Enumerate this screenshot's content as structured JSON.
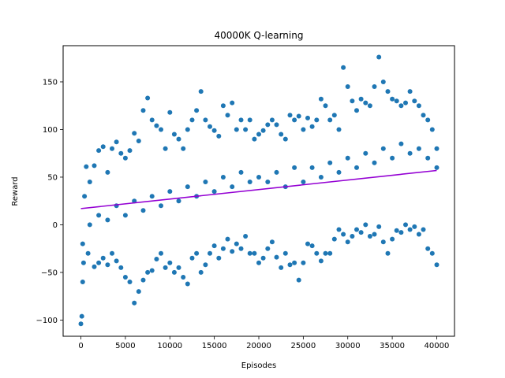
{
  "chart_data": {
    "type": "scatter",
    "title": "40000K Q-learning",
    "xlabel": "Episodes",
    "ylabel": "Reward",
    "xlim": [
      -2000,
      42000
    ],
    "ylim": [
      -117,
      188
    ],
    "xticks": [
      0,
      5000,
      10000,
      15000,
      20000,
      25000,
      30000,
      35000,
      40000
    ],
    "xtick_labels": [
      "0",
      "5000",
      "10000",
      "15000",
      "20000",
      "25000",
      "30000",
      "35000",
      "40000"
    ],
    "yticks": [
      -100,
      -50,
      0,
      50,
      100,
      150
    ],
    "ytick_labels": [
      "−100",
      "−50",
      "0",
      "50",
      "100",
      "150"
    ],
    "grid": false,
    "series": [
      {
        "kind": "scatter",
        "color": "#1f77b4",
        "points": [
          [
            0,
            -104
          ],
          [
            100,
            -96
          ],
          [
            200,
            -60
          ],
          [
            300,
            -40
          ],
          [
            400,
            30
          ],
          [
            600,
            61
          ],
          [
            1000,
            45
          ],
          [
            1500,
            62
          ],
          [
            2000,
            78
          ],
          [
            2500,
            82
          ],
          [
            3000,
            55
          ],
          [
            3500,
            80
          ],
          [
            4000,
            87
          ],
          [
            4500,
            75
          ],
          [
            5000,
            70
          ],
          [
            5500,
            78
          ],
          [
            6000,
            96
          ],
          [
            6500,
            88
          ],
          [
            7000,
            120
          ],
          [
            7500,
            133
          ],
          [
            8000,
            110
          ],
          [
            8500,
            104
          ],
          [
            9000,
            100
          ],
          [
            9500,
            80
          ],
          [
            10000,
            118
          ],
          [
            10500,
            95
          ],
          [
            11000,
            90
          ],
          [
            11500,
            80
          ],
          [
            12000,
            100
          ],
          [
            12500,
            110
          ],
          [
            13000,
            120
          ],
          [
            13500,
            140
          ],
          [
            14000,
            110
          ],
          [
            14500,
            103
          ],
          [
            15000,
            99
          ],
          [
            15500,
            93
          ],
          [
            16000,
            125
          ],
          [
            16500,
            115
          ],
          [
            17000,
            128
          ],
          [
            17500,
            100
          ],
          [
            18000,
            110
          ],
          [
            18500,
            100
          ],
          [
            19000,
            110
          ],
          [
            19500,
            90
          ],
          [
            20000,
            95
          ],
          [
            20500,
            99
          ],
          [
            21000,
            105
          ],
          [
            21500,
            110
          ],
          [
            22000,
            105
          ],
          [
            22500,
            95
          ],
          [
            23000,
            90
          ],
          [
            23500,
            115
          ],
          [
            24000,
            110
          ],
          [
            24500,
            114
          ],
          [
            25000,
            100
          ],
          [
            25500,
            112
          ],
          [
            26000,
            103
          ],
          [
            26500,
            110
          ],
          [
            27000,
            132
          ],
          [
            27500,
            125
          ],
          [
            28000,
            110
          ],
          [
            28500,
            115
          ],
          [
            29000,
            100
          ],
          [
            29500,
            165
          ],
          [
            30000,
            145
          ],
          [
            30500,
            130
          ],
          [
            31000,
            120
          ],
          [
            31500,
            132
          ],
          [
            32000,
            128
          ],
          [
            32500,
            125
          ],
          [
            33000,
            145
          ],
          [
            33500,
            176
          ],
          [
            34000,
            150
          ],
          [
            34500,
            140
          ],
          [
            35000,
            132
          ],
          [
            35500,
            130
          ],
          [
            36000,
            125
          ],
          [
            36500,
            128
          ],
          [
            37000,
            140
          ],
          [
            37500,
            130
          ],
          [
            38000,
            125
          ],
          [
            38500,
            115
          ],
          [
            39000,
            110
          ],
          [
            39500,
            100
          ],
          [
            40000,
            80
          ],
          [
            200,
            -20
          ],
          [
            800,
            -30
          ],
          [
            1500,
            -44
          ],
          [
            2000,
            -40
          ],
          [
            2500,
            -35
          ],
          [
            3000,
            -42
          ],
          [
            3500,
            -30
          ],
          [
            4000,
            -38
          ],
          [
            4500,
            -45
          ],
          [
            5000,
            -55
          ],
          [
            5500,
            -60
          ],
          [
            6000,
            -82
          ],
          [
            6500,
            -70
          ],
          [
            7000,
            -58
          ],
          [
            7500,
            -50
          ],
          [
            8000,
            -48
          ],
          [
            8500,
            -36
          ],
          [
            9000,
            -30
          ],
          [
            9500,
            -45
          ],
          [
            10000,
            -40
          ],
          [
            10500,
            -50
          ],
          [
            11000,
            -45
          ],
          [
            11500,
            -55
          ],
          [
            12000,
            -62
          ],
          [
            12500,
            -35
          ],
          [
            13000,
            -30
          ],
          [
            13500,
            -50
          ],
          [
            14000,
            -42
          ],
          [
            14500,
            -30
          ],
          [
            15000,
            -22
          ],
          [
            15500,
            -35
          ],
          [
            16000,
            -25
          ],
          [
            16500,
            -15
          ],
          [
            17000,
            -28
          ],
          [
            17500,
            -20
          ],
          [
            18000,
            -25
          ],
          [
            18500,
            -12
          ],
          [
            19000,
            -30
          ],
          [
            19500,
            -30
          ],
          [
            20000,
            -40
          ],
          [
            20500,
            -35
          ],
          [
            21000,
            -25
          ],
          [
            21500,
            -18
          ],
          [
            22000,
            -34
          ],
          [
            22500,
            -45
          ],
          [
            23000,
            -30
          ],
          [
            23500,
            -42
          ],
          [
            24000,
            -40
          ],
          [
            24500,
            -58
          ],
          [
            25000,
            -40
          ],
          [
            25500,
            -20
          ],
          [
            26000,
            -22
          ],
          [
            26500,
            -30
          ],
          [
            27000,
            -38
          ],
          [
            27500,
            -30
          ],
          [
            28000,
            -30
          ],
          [
            28500,
            -15
          ],
          [
            29000,
            -5
          ],
          [
            29500,
            -10
          ],
          [
            30000,
            -18
          ],
          [
            30500,
            -12
          ],
          [
            31000,
            -5
          ],
          [
            31500,
            -8
          ],
          [
            32000,
            0
          ],
          [
            32500,
            -12
          ],
          [
            33000,
            -10
          ],
          [
            33500,
            -2
          ],
          [
            34000,
            -18
          ],
          [
            34500,
            -30
          ],
          [
            35000,
            -15
          ],
          [
            35500,
            -6
          ],
          [
            36000,
            -8
          ],
          [
            36500,
            0
          ],
          [
            37000,
            -5
          ],
          [
            37500,
            -2
          ],
          [
            38000,
            -10
          ],
          [
            38500,
            -5
          ],
          [
            39000,
            -25
          ],
          [
            39500,
            -30
          ],
          [
            40000,
            -42
          ],
          [
            1000,
            0
          ],
          [
            2000,
            10
          ],
          [
            3000,
            5
          ],
          [
            4000,
            20
          ],
          [
            5000,
            10
          ],
          [
            6000,
            25
          ],
          [
            7000,
            15
          ],
          [
            8000,
            30
          ],
          [
            9000,
            20
          ],
          [
            10000,
            35
          ],
          [
            11000,
            25
          ],
          [
            12000,
            40
          ],
          [
            13000,
            30
          ],
          [
            14000,
            45
          ],
          [
            15000,
            35
          ],
          [
            16000,
            50
          ],
          [
            17000,
            40
          ],
          [
            18000,
            55
          ],
          [
            19000,
            45
          ],
          [
            20000,
            50
          ],
          [
            21000,
            45
          ],
          [
            22000,
            55
          ],
          [
            23000,
            40
          ],
          [
            24000,
            60
          ],
          [
            25000,
            45
          ],
          [
            26000,
            60
          ],
          [
            27000,
            50
          ],
          [
            28000,
            65
          ],
          [
            29000,
            55
          ],
          [
            30000,
            70
          ],
          [
            31000,
            60
          ],
          [
            32000,
            75
          ],
          [
            33000,
            65
          ],
          [
            34000,
            80
          ],
          [
            35000,
            70
          ],
          [
            36000,
            85
          ],
          [
            37000,
            75
          ],
          [
            38000,
            80
          ],
          [
            39000,
            70
          ],
          [
            40000,
            60
          ]
        ]
      },
      {
        "kind": "line",
        "color": "#9400d3",
        "x": [
          0,
          40000
        ],
        "y": [
          17,
          57
        ]
      }
    ]
  }
}
